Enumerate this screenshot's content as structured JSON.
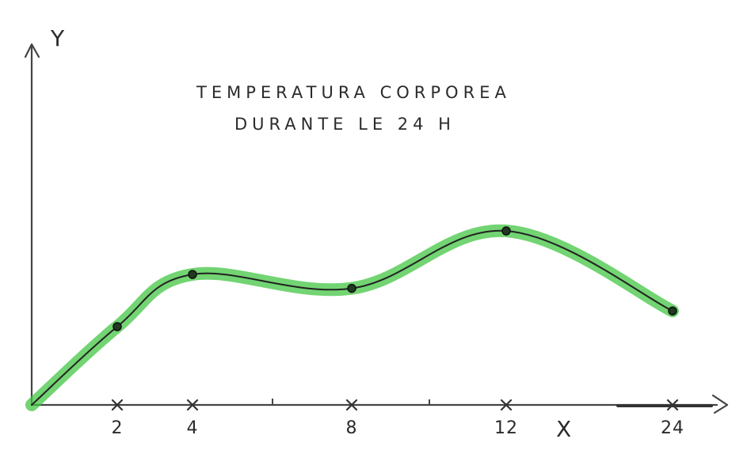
{
  "chart_data": {
    "type": "line",
    "title_lines": [
      "TEMPERATURA CORPOREA",
      "DURANTE LE 24 H"
    ],
    "xlabel": "X",
    "ylabel": "Y",
    "x_ticks": [
      {
        "x": 2,
        "label": "2"
      },
      {
        "x": 4,
        "label": "4"
      },
      {
        "x": 8,
        "label": "8"
      },
      {
        "x": 12,
        "label": "12"
      },
      {
        "x": 24,
        "label": "24"
      }
    ],
    "series": [
      {
        "points": [
          {
            "x": 0,
            "y": 0
          },
          {
            "x": 2,
            "y": 45
          },
          {
            "x": 4,
            "y": 75
          },
          {
            "x": 8,
            "y": 67
          },
          {
            "x": 12,
            "y": 100
          },
          {
            "x": 24,
            "y": 54
          }
        ]
      }
    ],
    "grid": false,
    "legend": "none",
    "colors": {
      "line": "#222222",
      "highlight": "#3cc43c",
      "axis": "#333333"
    }
  }
}
